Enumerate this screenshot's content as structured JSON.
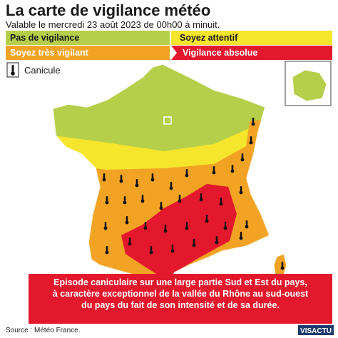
{
  "header": {
    "title": "La carte de vigilance météo",
    "subtitle": "Valable le mercredi 23 août 2023 de 00h00 à minuit."
  },
  "legend": {
    "items": [
      "Pas de vigilance",
      "Soyez attentif",
      "Soyez très vigilant",
      "Vigilance absolue"
    ],
    "icon_label": "Canicule"
  },
  "banner": {
    "lines": [
      "Episode caniculaire sur une large partie Sud et Est du pays,",
      "à caractère exceptionnel de la vallée du Rhône au sud-ouest",
      "du pays du fait de son intensité et de sa durée."
    ]
  },
  "footer": {
    "source": "Source : Météo France.",
    "brand": "VISACTU"
  }
}
